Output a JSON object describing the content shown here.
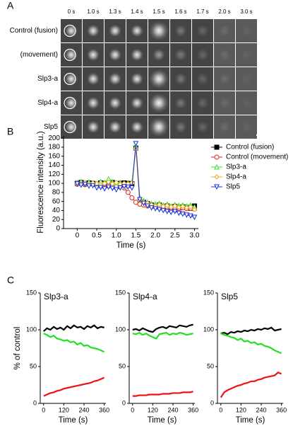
{
  "panel_labels": [
    "A",
    "B",
    "C"
  ],
  "image_grid": {
    "columns": [
      "0 s",
      "1.0 s",
      "1.3 s",
      "1.4 s",
      "1.5 s",
      "1.6 s",
      "1.7 s",
      "2.0 s",
      "3.0 s"
    ],
    "rows": [
      "Control (fusion)",
      "(movement)",
      "Slp3-a",
      "Slp4-a",
      "Slp5"
    ]
  },
  "chart_data": [
    {
      "type": "line",
      "y_label": "Fluorescence intensity (a.u.)",
      "x_label": "Time (s)",
      "legend": "right",
      "xlim": [
        -0.35,
        3.1
      ],
      "ylim": [
        0,
        205
      ],
      "xticks": [
        0,
        0.5,
        {
          "value": 1,
          "label": "1.0"
        },
        1.5,
        {
          "value": 2,
          "label": "2.0"
        },
        2.5,
        {
          "value": 3,
          "label": "3.0"
        }
      ],
      "yticks": [
        0,
        20,
        40,
        60,
        80,
        100,
        120,
        140,
        160,
        180,
        200
      ],
      "x": [
        0,
        0.1,
        0.2,
        0.3,
        0.4,
        0.5,
        0.6,
        0.7,
        0.8,
        0.9,
        1.0,
        1.1,
        1.2,
        1.3,
        1.4,
        1.5,
        1.6,
        1.7,
        1.8,
        1.9,
        2.0,
        2.1,
        2.2,
        2.3,
        2.4,
        2.5,
        2.6,
        2.7,
        2.8,
        2.9,
        3.0
      ],
      "series": [
        {
          "name": "Control (fusion)",
          "color": "#000000",
          "marker": "square",
          "values": [
            100,
            102,
            99,
            101,
            100,
            98,
            101,
            100,
            99,
            102,
            98,
            100,
            101,
            100,
            99,
            178,
            60,
            58,
            55,
            52,
            50,
            52,
            48,
            50,
            47,
            49,
            46,
            48,
            47,
            45,
            50
          ]
        },
        {
          "name": "Control (movement)",
          "color": "#e8231f",
          "marker": "circle",
          "values": [
            98,
            100,
            97,
            99,
            98,
            96,
            97,
            99,
            95,
            96,
            94,
            95,
            90,
            80,
            68,
            58,
            54,
            52,
            50,
            50,
            48,
            49,
            47,
            48,
            46,
            47,
            45,
            46,
            44,
            45,
            43
          ]
        },
        {
          "name": "Slp3-a",
          "color": "#3fd936",
          "marker": "triangle",
          "values": [
            102,
            104,
            100,
            103,
            101,
            99,
            104,
            102,
            110,
            103,
            101,
            102,
            100,
            101,
            103,
            182,
            68,
            62,
            58,
            55,
            54,
            56,
            52,
            54,
            50,
            53,
            51,
            52,
            50,
            52,
            48
          ]
        },
        {
          "name": "Slp4-a",
          "color": "#f0a81c",
          "marker": "diamond",
          "values": [
            100,
            99,
            102,
            98,
            101,
            100,
            97,
            100,
            103,
            99,
            102,
            98,
            100,
            99,
            101,
            175,
            62,
            58,
            56,
            52,
            50,
            53,
            49,
            51,
            48,
            50,
            47,
            49,
            46,
            48,
            42
          ]
        },
        {
          "name": "Slp5",
          "color": "#1c2fd6",
          "marker": "triangle-down",
          "values": [
            99,
            96,
            98,
            94,
            95,
            90,
            91,
            88,
            92,
            89,
            86,
            90,
            93,
            92,
            90,
            188,
            64,
            56,
            50,
            46,
            44,
            42,
            40,
            38,
            36,
            38,
            34,
            32,
            30,
            28,
            25
          ]
        }
      ]
    },
    {
      "type": "line",
      "title": "Slp3-a",
      "y_label": "% of control",
      "x_label": "Time (s)",
      "xlim": [
        -20,
        370
      ],
      "ylim": [
        0,
        150
      ],
      "xticks": [
        0,
        120,
        240,
        360
      ],
      "yticks": [
        0,
        50,
        100,
        150
      ],
      "x": [
        0,
        20,
        40,
        60,
        80,
        100,
        120,
        140,
        160,
        180,
        200,
        220,
        240,
        260,
        280,
        300,
        320,
        340,
        360
      ],
      "series": [
        {
          "color": "#000000",
          "values": [
            98,
            102,
            100,
            104,
            101,
            103,
            100,
            105,
            102,
            106,
            103,
            104,
            101,
            105,
            103,
            106,
            102,
            104,
            103
          ]
        },
        {
          "color": "#22e022",
          "values": [
            95,
            93,
            90,
            92,
            88,
            87,
            85,
            86,
            83,
            84,
            80,
            82,
            78,
            79,
            76,
            75,
            74,
            72,
            70
          ]
        },
        {
          "color": "#ee1111",
          "values": [
            10,
            12,
            14,
            15,
            17,
            18,
            20,
            21,
            22,
            23,
            24,
            25,
            26,
            27,
            28,
            30,
            31,
            33,
            35
          ]
        }
      ]
    },
    {
      "type": "line",
      "title": "Slp4-a",
      "x_label": "Time (s)",
      "xlim": [
        -20,
        370
      ],
      "ylim": [
        0,
        150
      ],
      "xticks": [
        0,
        120,
        240,
        360
      ],
      "yticks": [
        0,
        50,
        100,
        150
      ],
      "x": [
        0,
        20,
        40,
        60,
        80,
        100,
        120,
        140,
        160,
        180,
        200,
        220,
        240,
        260,
        280,
        300,
        320,
        340,
        360
      ],
      "series": [
        {
          "color": "#000000",
          "values": [
            100,
            101,
            99,
            102,
            100,
            98,
            97,
            101,
            103,
            104,
            102,
            105,
            104,
            103,
            106,
            105,
            104,
            106,
            107
          ]
        },
        {
          "color": "#22e022",
          "values": [
            95,
            94,
            96,
            93,
            95,
            92,
            90,
            88,
            94,
            95,
            96,
            93,
            95,
            94,
            96,
            95,
            93,
            94,
            95
          ]
        },
        {
          "color": "#ee1111",
          "values": [
            10,
            10,
            11,
            11,
            11,
            12,
            12,
            12,
            12,
            13,
            13,
            13,
            14,
            14,
            14,
            15,
            15,
            15,
            16
          ]
        }
      ]
    },
    {
      "type": "line",
      "title": "Slp5",
      "x_label": "Time (s)",
      "xlim": [
        -20,
        370
      ],
      "ylim": [
        0,
        150
      ],
      "xticks": [
        0,
        120,
        240,
        360
      ],
      "yticks": [
        0,
        50,
        100,
        150
      ],
      "x": [
        0,
        20,
        40,
        60,
        80,
        100,
        120,
        140,
        160,
        180,
        200,
        220,
        240,
        260,
        280,
        300,
        320,
        340,
        360
      ],
      "series": [
        {
          "color": "#000000",
          "values": [
            95,
            96,
            94,
            97,
            96,
            98,
            97,
            99,
            98,
            100,
            99,
            101,
            100,
            102,
            101,
            103,
            99,
            100,
            101
          ]
        },
        {
          "color": "#22e022",
          "values": [
            95,
            93,
            92,
            90,
            89,
            86,
            88,
            84,
            85,
            82,
            83,
            80,
            81,
            78,
            77,
            75,
            72,
            70,
            68
          ]
        },
        {
          "color": "#ee1111",
          "values": [
            8,
            15,
            18,
            20,
            22,
            24,
            25,
            27,
            28,
            30,
            30,
            32,
            33,
            35,
            36,
            37,
            38,
            42,
            40
          ]
        }
      ]
    }
  ]
}
